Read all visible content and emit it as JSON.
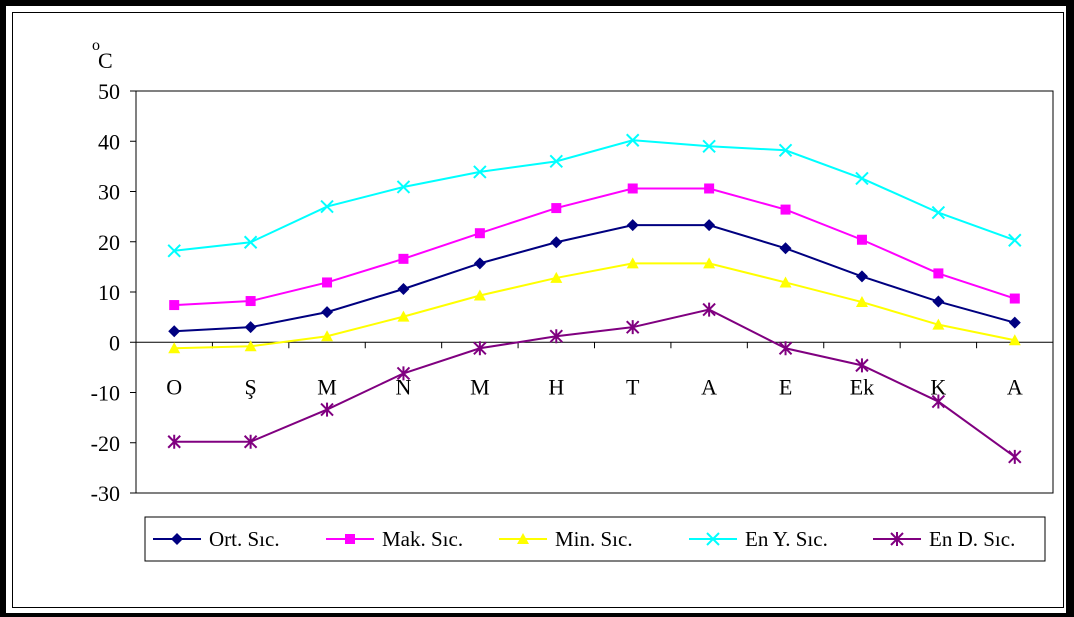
{
  "chart_data": {
    "type": "line",
    "ylabel_unit_sup": "o",
    "ylabel_unit": "C",
    "ylim": [
      -30,
      50
    ],
    "yticks": [
      50,
      40,
      30,
      20,
      10,
      0,
      -10,
      -20,
      -30
    ],
    "categories": [
      "O",
      "Ş",
      "M",
      "N",
      "M",
      "H",
      "T",
      "A",
      "E",
      "Ek",
      "K",
      "A"
    ],
    "grid": false,
    "legend_position": "bottom",
    "series": [
      {
        "name": "Ort. Sıc.",
        "color": "#000080",
        "marker": "diamond",
        "values": [
          2.2,
          3.0,
          6.0,
          10.6,
          15.7,
          19.9,
          23.3,
          23.3,
          18.7,
          13.1,
          8.1,
          3.9
        ]
      },
      {
        "name": "Mak. Sıc.",
        "color": "#ff00ff",
        "marker": "square",
        "values": [
          7.4,
          8.2,
          11.9,
          16.6,
          21.7,
          26.7,
          30.6,
          30.6,
          26.4,
          20.4,
          13.7,
          8.7
        ]
      },
      {
        "name": "Min. Sıc.",
        "color": "#ffff00",
        "marker": "triangle",
        "values": [
          -1.2,
          -0.8,
          1.2,
          5.1,
          9.3,
          12.8,
          15.7,
          15.7,
          11.9,
          8.0,
          3.5,
          0.4
        ]
      },
      {
        "name": "En Y. Sıc.",
        "color": "#00ffff",
        "marker": "x",
        "values": [
          18.2,
          19.9,
          27.0,
          30.9,
          33.9,
          36.0,
          40.2,
          39.0,
          38.2,
          32.6,
          25.8,
          20.3
        ]
      },
      {
        "name": "En D. Sıc.",
        "color": "#800080",
        "marker": "star",
        "values": [
          -19.8,
          -19.8,
          -13.4,
          -6.2,
          -1.2,
          1.2,
          3.0,
          6.5,
          -1.2,
          -4.6,
          -11.8,
          -22.8
        ]
      }
    ]
  }
}
